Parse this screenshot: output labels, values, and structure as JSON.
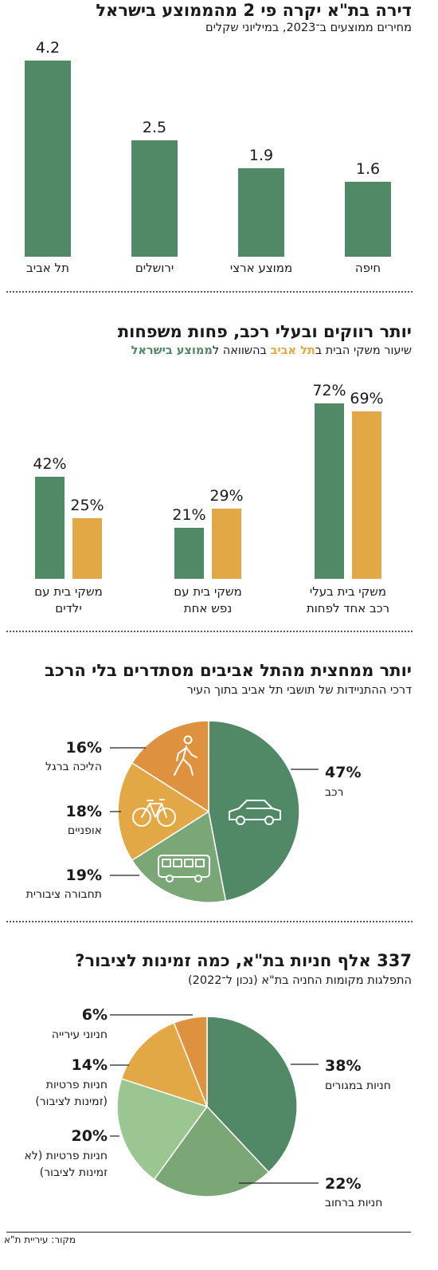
{
  "colors": {
    "green": "#518865",
    "orange": "#E2A846",
    "dark_orange": "#DE9240",
    "mid_green": "#7BA676",
    "light_green": "#9BC591"
  },
  "icons": [
    "walking-person-icon",
    "bicycle-icon",
    "bus-icon",
    "car-icon"
  ],
  "chart_data": [
    {
      "type": "bar",
      "title": "דירה בת\"א יקרה פי 2 מהממוצע בישראל",
      "subtitle": "מחירים ממוצעים ב־2023, במיליוני שקלים",
      "categories": [
        "תל אביב",
        "ירושלים",
        "ממוצע ארצי",
        "חיפה"
      ],
      "values": [
        4.2,
        2.5,
        1.9,
        1.6
      ],
      "value_labels": [
        "4.2",
        "2.5",
        "1.9",
        "1.6"
      ]
    },
    {
      "type": "bar",
      "title": "יותר רווקים ובעלי רכב, פחות משפחות",
      "subtitle_parts": [
        "שיעור משקי הבית ב",
        "תל אביב",
        " בהשוואה ל",
        "ממוצע בישראל"
      ],
      "categories": [
        [
          "משקי בית עם",
          "ילדים"
        ],
        [
          "משקי בית עם",
          "נפש אחת"
        ],
        [
          "משקי בית בעלי",
          "רכב אחד לפחות"
        ]
      ],
      "series": [
        {
          "name": "תל אביב",
          "values": [
            42,
            21,
            72
          ],
          "labels": [
            "42%",
            "21%",
            "72%"
          ]
        },
        {
          "name": "ממוצע בישראל",
          "values": [
            25,
            29,
            69
          ],
          "labels": [
            "25%",
            "29%",
            "69%"
          ]
        }
      ]
    },
    {
      "type": "pie",
      "title": "יותר ממחצית מהתל אביבים מסתדרים בלי הרכב",
      "subtitle": "דרכי ההתניידות של תושבי תל אביב בתוך העיר",
      "slices": [
        {
          "label": "רכב",
          "value": 47,
          "pct_label": "47%",
          "icon": "car-icon"
        },
        {
          "label": "תחבורה ציבורית",
          "value": 19,
          "pct_label": "19%",
          "icon": "bus-icon"
        },
        {
          "label": "אופניים",
          "value": 18,
          "pct_label": "18%",
          "icon": "bicycle-icon"
        },
        {
          "label": "הליכה ברגל",
          "value": 16,
          "pct_label": "16%",
          "icon": "walking-person-icon"
        }
      ]
    },
    {
      "type": "pie",
      "title": "337 אלף חניות בת\"א, כמה זמינות לציבור?",
      "subtitle": "התפלגות מקומות החניה בת\"א (נכון ל־2022)",
      "slices": [
        {
          "label": "חניות במגורים",
          "value": 38,
          "pct_label": "38%"
        },
        {
          "label": "חניות ברחוב",
          "value": 22,
          "pct_label": "22%"
        },
        {
          "label_lines": [
            "חניות פרטיות (לא",
            "זמינות לציבור)"
          ],
          "value": 20,
          "pct_label": "20%"
        },
        {
          "label_lines": [
            "חניות פרטיות",
            "(זמינות לציבור)"
          ],
          "value": 14,
          "pct_label": "14%"
        },
        {
          "label": "חניוני עירייה",
          "value": 6,
          "pct_label": "6%"
        }
      ]
    }
  ],
  "source": "מקור: עיריית ת\"א"
}
